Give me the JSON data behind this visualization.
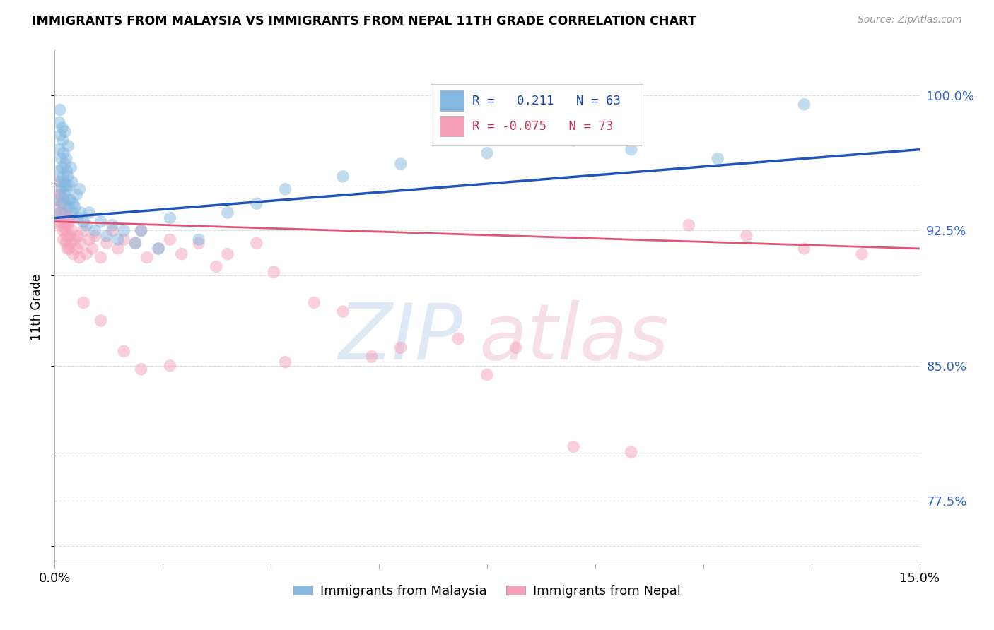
{
  "title": "IMMIGRANTS FROM MALAYSIA VS IMMIGRANTS FROM NEPAL 11TH GRADE CORRELATION CHART",
  "source": "Source: ZipAtlas.com",
  "ylabel": "11th Grade",
  "yticks": [
    77.5,
    85.0,
    92.5,
    100.0
  ],
  "ytick_labels": [
    "77.5%",
    "85.0%",
    "92.5%",
    "100.0%"
  ],
  "xmin": 0.0,
  "xmax": 15.0,
  "ymin": 74.0,
  "ymax": 102.5,
  "r_malaysia": 0.211,
  "n_malaysia": 63,
  "r_nepal": -0.075,
  "n_nepal": 73,
  "malaysia_color": "#85b8e0",
  "nepal_color": "#f5a0b8",
  "malaysia_line_color": "#2255bb",
  "nepal_line_color": "#e05575",
  "legend_r1_color": "#1144bb",
  "legend_r2_color": "#cc3355",
  "ytick_color": "#3366cc",
  "grid_color": "#dddddd",
  "malaysia_x": [
    0.05,
    0.07,
    0.08,
    0.08,
    0.09,
    0.1,
    0.1,
    0.1,
    0.11,
    0.12,
    0.13,
    0.13,
    0.14,
    0.14,
    0.15,
    0.15,
    0.16,
    0.17,
    0.18,
    0.18,
    0.19,
    0.2,
    0.2,
    0.21,
    0.22,
    0.23,
    0.23,
    0.25,
    0.25,
    0.27,
    0.28,
    0.3,
    0.3,
    0.32,
    0.35,
    0.38,
    0.4,
    0.43,
    0.45,
    0.5,
    0.55,
    0.6,
    0.7,
    0.8,
    0.9,
    1.0,
    1.1,
    1.2,
    1.4,
    1.5,
    1.8,
    2.0,
    2.5,
    3.0,
    3.5,
    4.0,
    5.0,
    6.0,
    7.5,
    9.0,
    10.0,
    11.5,
    13.0
  ],
  "malaysia_y": [
    94.2,
    95.8,
    97.0,
    98.5,
    99.2,
    93.5,
    95.2,
    97.8,
    96.5,
    94.8,
    96.0,
    98.2,
    95.5,
    97.5,
    94.0,
    96.8,
    95.2,
    94.5,
    96.2,
    98.0,
    95.0,
    94.8,
    96.5,
    95.8,
    94.2,
    95.5,
    97.2,
    93.8,
    95.0,
    94.2,
    96.0,
    93.5,
    95.2,
    94.0,
    93.8,
    94.5,
    93.2,
    94.8,
    93.5,
    93.0,
    92.8,
    93.5,
    92.5,
    93.0,
    92.2,
    92.8,
    92.0,
    92.5,
    91.8,
    92.5,
    91.5,
    93.2,
    92.0,
    93.5,
    94.0,
    94.8,
    95.5,
    96.2,
    96.8,
    97.5,
    97.0,
    96.5,
    99.5
  ],
  "nepal_x": [
    0.05,
    0.07,
    0.08,
    0.09,
    0.1,
    0.1,
    0.11,
    0.12,
    0.13,
    0.14,
    0.15,
    0.15,
    0.16,
    0.17,
    0.18,
    0.19,
    0.2,
    0.2,
    0.21,
    0.22,
    0.23,
    0.25,
    0.25,
    0.27,
    0.28,
    0.3,
    0.3,
    0.32,
    0.35,
    0.38,
    0.4,
    0.43,
    0.45,
    0.5,
    0.55,
    0.6,
    0.65,
    0.7,
    0.8,
    0.9,
    1.0,
    1.1,
    1.2,
    1.4,
    1.5,
    1.6,
    1.8,
    2.0,
    2.2,
    2.5,
    2.8,
    3.0,
    3.5,
    3.8,
    4.0,
    4.5,
    5.0,
    5.5,
    6.0,
    7.0,
    8.0,
    9.0,
    10.0,
    11.0,
    12.0,
    13.0,
    14.0,
    0.5,
    0.8,
    1.2,
    1.5,
    2.0,
    7.5
  ],
  "nepal_y": [
    93.8,
    95.2,
    94.5,
    93.0,
    92.8,
    94.5,
    93.5,
    94.0,
    93.2,
    92.5,
    92.0,
    94.2,
    93.5,
    92.8,
    93.0,
    92.5,
    91.8,
    93.5,
    92.2,
    91.5,
    92.8,
    91.5,
    93.0,
    92.2,
    91.8,
    92.5,
    93.2,
    91.2,
    92.0,
    91.5,
    92.2,
    91.0,
    91.8,
    92.5,
    91.2,
    92.0,
    91.5,
    92.2,
    91.0,
    91.8,
    92.5,
    91.5,
    92.0,
    91.8,
    92.5,
    91.0,
    91.5,
    92.0,
    91.2,
    91.8,
    90.5,
    91.2,
    91.8,
    90.2,
    85.2,
    88.5,
    88.0,
    85.5,
    86.0,
    86.5,
    86.0,
    80.5,
    80.2,
    92.8,
    92.2,
    91.5,
    91.2,
    88.5,
    87.5,
    85.8,
    84.8,
    85.0,
    84.5
  ]
}
